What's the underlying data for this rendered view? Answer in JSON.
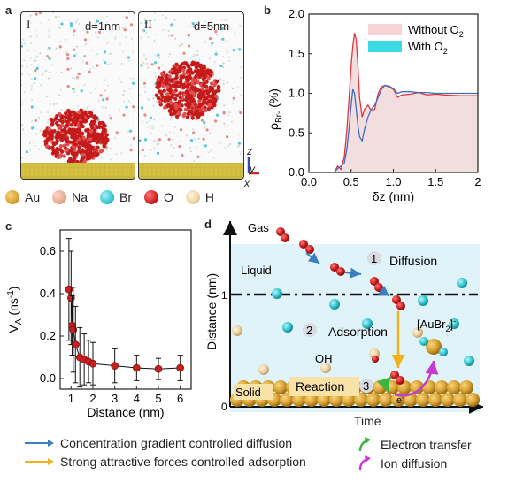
{
  "panels": {
    "a": {
      "letter": "a",
      "box1": {
        "roman": "I",
        "label": "d=1nm"
      },
      "box2": {
        "roman": "II",
        "label": "d=5nm"
      },
      "axis_z": "z",
      "axis_y": "y",
      "axis_x": "x",
      "legend": [
        {
          "name": "Au",
          "color": "#d9a336"
        },
        {
          "name": "Na",
          "color": "#e8a98f"
        },
        {
          "name": "Br",
          "color": "#35c8d3"
        },
        {
          "name": "O",
          "color": "#d11f1f"
        },
        {
          "name": "H",
          "color": "#ecd2a4"
        }
      ]
    },
    "b": {
      "letter": "b"
    },
    "c": {
      "letter": "c"
    },
    "d": {
      "letter": "d",
      "ylabel": "Distance (nm)",
      "xlabel": "Time",
      "origin": "0",
      "ytick": "1",
      "labels": {
        "gas": "Gas",
        "liquid": "Liquid",
        "solid": "Solid",
        "diffusion": "Diffusion",
        "adsorption": "Adsorption",
        "reaction": "Reaction",
        "step1": "1",
        "step2": "2",
        "step3": "3",
        "oh": "OH",
        "oh_sup": "-",
        "aubr": "[AuBr",
        "aubr_sub": "2",
        "aubr_sup": "]",
        "aubr_charge": "-",
        "electron": "e",
        "electron_sup": "-"
      }
    }
  },
  "bottom_legend": [
    {
      "text": "Concentration gradient controlled diffusion",
      "color": "#3a7fc1"
    },
    {
      "text": "Strong attractive forces controlled adsorption",
      "color": "#f2b21c"
    },
    {
      "text": "Electron transfer",
      "color": "#3db43d"
    },
    {
      "text": "Ion diffusion",
      "color": "#c63ccf"
    }
  ],
  "chart_data": [
    {
      "panel": "b",
      "type": "line",
      "xlabel": "δz (nm)",
      "ylabel": "ρBr- (%)",
      "ylabel_main": "ρ",
      "ylabel_sub": "Br-",
      "ylabel_unit": " (%)",
      "xlim": [
        0,
        2
      ],
      "ylim": [
        0,
        2
      ],
      "xticks": [
        "0.0",
        "0.5",
        "1.0",
        "1.5",
        "2"
      ],
      "yticks": [
        "0.0",
        "0.5",
        "1.0",
        "1.5",
        "2.0"
      ],
      "legend": {
        "without": "Without O",
        "with": "With O",
        "sub": "2",
        "position": "top-right"
      },
      "series": [
        {
          "name": "Without O2",
          "color": "#e0373f",
          "fill": "#f3dedf",
          "x": [
            0.3,
            0.34,
            0.38,
            0.42,
            0.45,
            0.48,
            0.5,
            0.52,
            0.54,
            0.56,
            0.58,
            0.6,
            0.63,
            0.66,
            0.7,
            0.74,
            0.78,
            0.82,
            0.86,
            0.9,
            0.95,
            1.0,
            1.05,
            1.1,
            1.2,
            1.3,
            1.4,
            1.5,
            1.6,
            1.8,
            2.0
          ],
          "values": [
            0.0,
            0.08,
            0.04,
            0.2,
            0.55,
            1.0,
            1.35,
            1.6,
            1.76,
            1.68,
            1.35,
            0.95,
            0.7,
            0.8,
            0.85,
            0.78,
            0.8,
            1.0,
            1.08,
            1.1,
            1.08,
            1.05,
            0.95,
            0.98,
            0.99,
            1.01,
            0.98,
            0.99,
            0.98,
            0.97,
            0.97
          ]
        },
        {
          "name": "With O2",
          "color": "#3f6ec0",
          "x": [
            0.3,
            0.34,
            0.38,
            0.42,
            0.45,
            0.48,
            0.5,
            0.52,
            0.54,
            0.56,
            0.58,
            0.6,
            0.63,
            0.66,
            0.7,
            0.74,
            0.78,
            0.82,
            0.86,
            0.9,
            0.95,
            1.0,
            1.05,
            1.1,
            1.2,
            1.3,
            1.4,
            1.5,
            1.6,
            1.8,
            2.0
          ],
          "values": [
            0.0,
            0.05,
            0.08,
            0.12,
            0.3,
            0.6,
            0.85,
            1.05,
            1.0,
            0.8,
            0.6,
            0.45,
            0.4,
            0.55,
            0.7,
            0.8,
            0.85,
            0.95,
            1.05,
            1.1,
            1.09,
            1.06,
            1.0,
            1.02,
            1.02,
            1.01,
            1.01,
            1.0,
            1.0,
            1.0,
            1.0
          ]
        }
      ]
    },
    {
      "panel": "c",
      "type": "scatter",
      "xlabel": "Distance (nm)",
      "ylabel": "VA (ns-1)",
      "ylabel_main": "V",
      "ylabel_sub": "A",
      "ylabel_unit": " (ns",
      "ylabel_sup": "-1",
      "ylabel_close": ")",
      "xlim": [
        0.5,
        6.5
      ],
      "ylim": [
        -0.05,
        0.7
      ],
      "xticks": [
        "1",
        "2",
        "3",
        "4",
        "5",
        "6"
      ],
      "yticks": [
        "0.0",
        "0.2",
        "0.4",
        "0.6"
      ],
      "x": [
        0.9,
        1.0,
        1.05,
        1.1,
        1.2,
        1.4,
        1.6,
        1.8,
        2.0,
        3.0,
        4.0,
        5.0,
        6.0
      ],
      "values": [
        0.42,
        0.38,
        0.25,
        0.23,
        0.16,
        0.1,
        0.09,
        0.08,
        0.07,
        0.06,
        0.05,
        0.045,
        0.05
      ],
      "errors": [
        0.24,
        0.22,
        0.14,
        0.2,
        0.18,
        0.14,
        0.12,
        0.1,
        0.1,
        0.08,
        0.06,
        0.05,
        0.06
      ]
    }
  ]
}
